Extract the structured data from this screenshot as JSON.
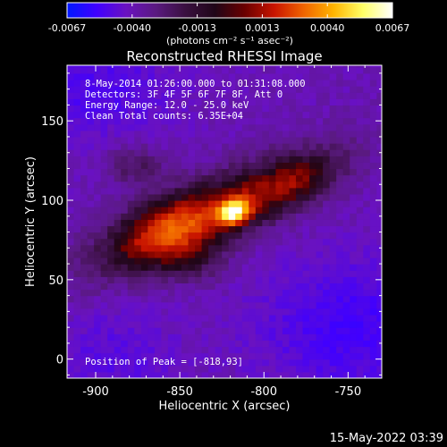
{
  "colorbar": {
    "ticks": [
      "-0.0067",
      "-0.0040",
      "-0.0013",
      "0.0013",
      "0.0040",
      "0.0067"
    ],
    "unit": "(photons cm⁻² s⁻¹ asec⁻²)",
    "range": [
      -0.0067,
      0.0067
    ],
    "colors": [
      "#0018ff",
      "#4000ff",
      "#6a12c0",
      "#5a1a80",
      "#3a1040",
      "#200618",
      "#6a0000",
      "#c81400",
      "#f06400",
      "#ffb400",
      "#ffff66",
      "#ffffff"
    ]
  },
  "chart_data": {
    "type": "heatmap",
    "title": "Reconstructed RHESSI Image",
    "xlabel": "Heliocentric X (arcsec)",
    "ylabel": "Heliocentric Y (arcsec)",
    "xlim": [
      -917,
      -730
    ],
    "ylim": [
      -12,
      185
    ],
    "xticks": [
      "-900",
      "-850",
      "-800",
      "-750"
    ],
    "xtick_values": [
      -900,
      -850,
      -800,
      -750
    ],
    "yticks": [
      "0",
      "50",
      "100",
      "150"
    ],
    "ytick_values": [
      0,
      50,
      100,
      150
    ],
    "grid": false,
    "peak": {
      "x": -818,
      "y": 93,
      "value": 0.0067
    },
    "source": {
      "x_range": [
        -900,
        -766
      ],
      "y_range": [
        58,
        125
      ],
      "orientation": "elongated, rising to upper right"
    },
    "background": "negative sidelobes (purple) in corners",
    "annotations": [
      "8-May-2014 01:26:00.000  to 01:31:08.000",
      "Detectors: 3F 4F 5F 6F 7F 8F, Att 0",
      "Energy Range: 12.0 - 25.0 keV",
      "Clean     Total counts: 6.35E+04"
    ],
    "peak_label": "Position of Peak = [-818,93]"
  },
  "footer": {
    "timestamp": "15-May-2022 03:39"
  }
}
